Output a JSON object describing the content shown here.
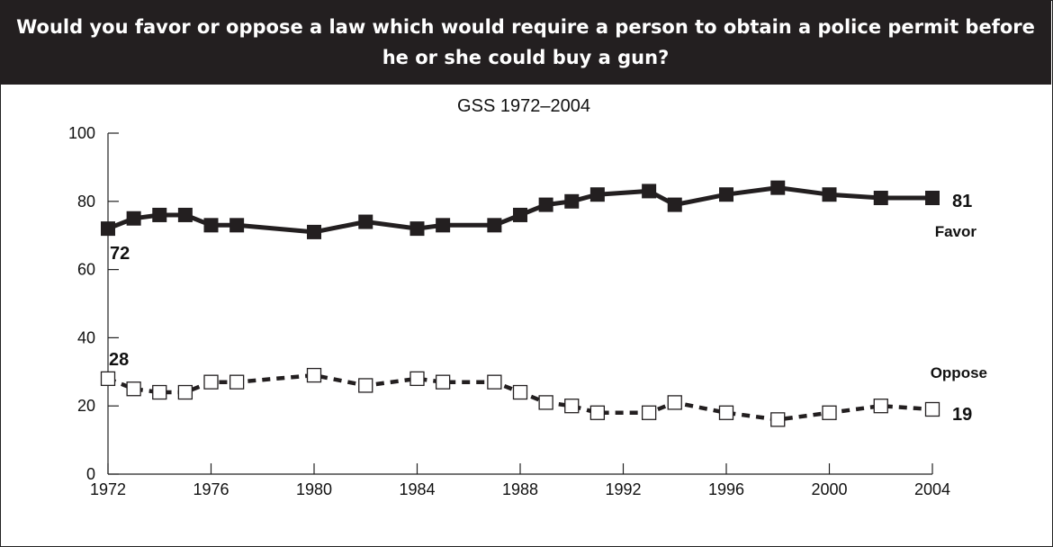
{
  "chart_data": {
    "type": "line",
    "title": "Would you favor or oppose a law which would require a person to obtain a police permit before he or she could buy a gun?",
    "subtitle": "GSS 1972–2004",
    "xlabel": "",
    "ylabel": "",
    "xlim": [
      1972,
      2004
    ],
    "ylim": [
      0,
      100
    ],
    "x_ticks": [
      "1972",
      "1976",
      "1980",
      "1984",
      "1988",
      "1992",
      "1996",
      "2000",
      "2004"
    ],
    "y_ticks": [
      "0",
      "20",
      "40",
      "60",
      "80",
      "100"
    ],
    "grid": false,
    "series": [
      {
        "name": "Favor",
        "style": "solid",
        "marker": "filled-square",
        "color": "#231f20",
        "x": [
          1972,
          1973,
          1974,
          1975,
          1976,
          1977,
          1980,
          1982,
          1984,
          1985,
          1987,
          1988,
          1989,
          1990,
          1991,
          1993,
          1994,
          1996,
          1998,
          2000,
          2002,
          2004
        ],
        "values": [
          72,
          75,
          76,
          76,
          73,
          73,
          71,
          74,
          72,
          73,
          73,
          76,
          79,
          80,
          82,
          83,
          79,
          82,
          84,
          82,
          81,
          81
        ]
      },
      {
        "name": "Oppose",
        "style": "dashed",
        "marker": "open-square",
        "color": "#231f20",
        "x": [
          1972,
          1973,
          1974,
          1975,
          1976,
          1977,
          1980,
          1982,
          1984,
          1985,
          1987,
          1988,
          1989,
          1990,
          1991,
          1993,
          1994,
          1996,
          1998,
          2000,
          2002,
          2004
        ],
        "values": [
          28,
          25,
          24,
          24,
          27,
          27,
          29,
          26,
          28,
          27,
          27,
          24,
          21,
          20,
          18,
          18,
          21,
          18,
          16,
          18,
          20,
          19
        ]
      }
    ],
    "annotations": {
      "favor_start": "72",
      "favor_end": "81",
      "oppose_start": "28",
      "oppose_end": "19"
    }
  }
}
